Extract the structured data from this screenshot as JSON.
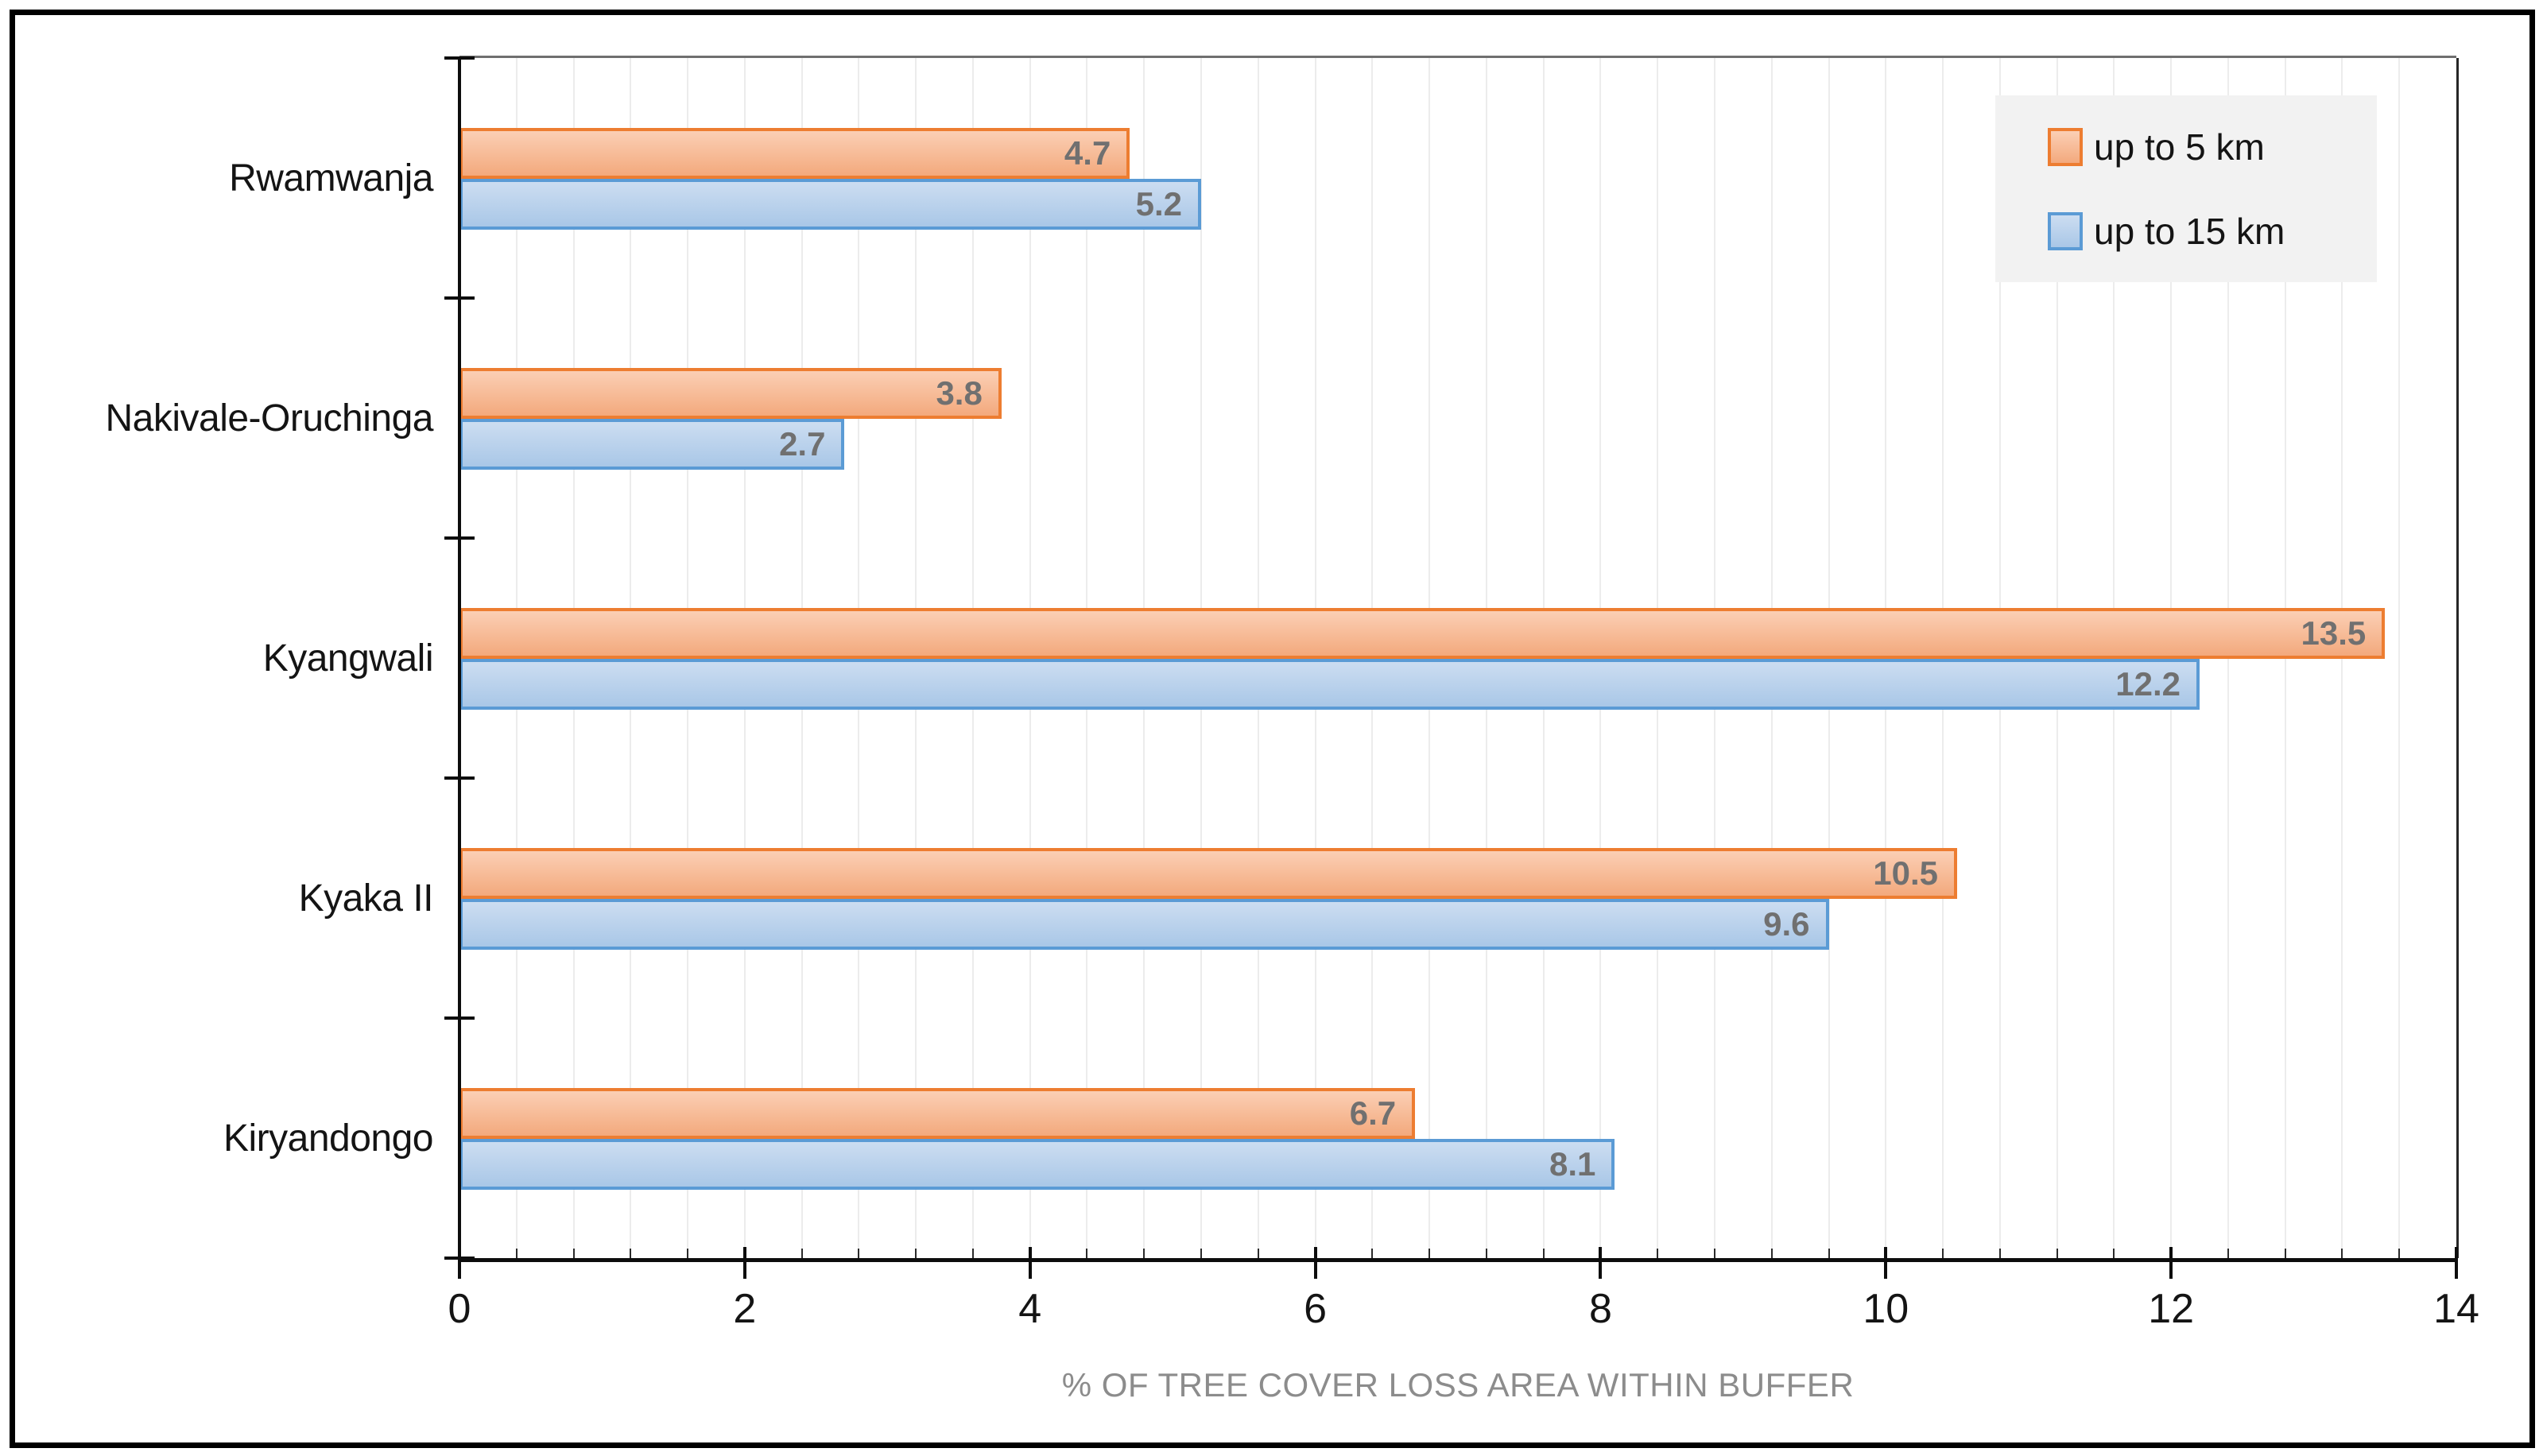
{
  "chart_data": {
    "type": "bar",
    "orientation": "horizontal",
    "categories": [
      "Rwamwanja",
      "Nakivale-Oruchinga",
      "Kyangwali",
      "Kyaka II",
      "Kiryandongo"
    ],
    "series": [
      {
        "name": "up to 5 km",
        "values": [
          4.7,
          3.8,
          13.5,
          10.5,
          6.7
        ],
        "border_color": "#ED7D31",
        "fill_top": "#FBCFB5",
        "fill_bottom": "#F3A97D"
      },
      {
        "name": "up to 15 km",
        "values": [
          5.2,
          2.7,
          12.2,
          9.6,
          8.1
        ],
        "border_color": "#5B9BD5",
        "fill_top": "#CCDDF1",
        "fill_bottom": "#A9C7E7"
      }
    ],
    "xlabel": "% OF TREE COVER LOSS AREA WITHIN BUFFER",
    "xlim": [
      0,
      14
    ],
    "x_major_ticks": [
      0,
      2,
      4,
      6,
      8,
      10,
      12,
      14
    ],
    "x_minor_step": 0.4,
    "grid": "vertical-minor",
    "legend_position": "top-right",
    "legend_items": [
      "up to 5 km",
      "up to 15 km"
    ],
    "data_labels": "inside-end",
    "data_label_color": "#707070",
    "axis_title_color": "#8C8C8C",
    "gridline_color": "#ECECEC",
    "legend_background": "#F2F2F2"
  }
}
